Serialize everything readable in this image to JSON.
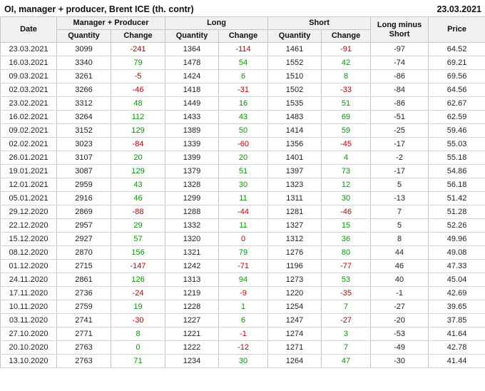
{
  "header": {
    "title": "OI, manager + producer, Brent ICE (th. contr)",
    "date": "23.03.2021"
  },
  "columns": {
    "date": "Date",
    "group_mp": "Manager + Producer",
    "group_long": "Long",
    "group_short": "Short",
    "quantity": "Quantity",
    "change": "Change",
    "long_minus_short": "Long minus Short",
    "price": "Price"
  },
  "colors": {
    "positive": "#089908",
    "negative": "#cc0000",
    "header_bg": "#f0f0f0",
    "header_border": "#c6c6c6",
    "body_border": "#d4d4d4",
    "text": "#1a1a1a"
  },
  "rows": [
    {
      "date": "23.03.2021",
      "mp_q": "3099",
      "mp_c": "-241",
      "mp_cc": "neg",
      "long_q": "1364",
      "long_c": "-114",
      "long_cc": "neg",
      "short_q": "1461",
      "short_c": "-91",
      "short_cc": "neg",
      "ls": "-97",
      "price": "64.52"
    },
    {
      "date": "16.03.2021",
      "mp_q": "3340",
      "mp_c": "79",
      "mp_cc": "pos",
      "long_q": "1478",
      "long_c": "54",
      "long_cc": "pos",
      "short_q": "1552",
      "short_c": "42",
      "short_cc": "pos",
      "ls": "-74",
      "price": "69.21"
    },
    {
      "date": "09.03.2021",
      "mp_q": "3261",
      "mp_c": "-5",
      "mp_cc": "neg",
      "long_q": "1424",
      "long_c": "6",
      "long_cc": "pos",
      "short_q": "1510",
      "short_c": "8",
      "short_cc": "pos",
      "ls": "-86",
      "price": "69.56"
    },
    {
      "date": "02.03.2021",
      "mp_q": "3266",
      "mp_c": "-46",
      "mp_cc": "neg",
      "long_q": "1418",
      "long_c": "-31",
      "long_cc": "neg",
      "short_q": "1502",
      "short_c": "-33",
      "short_cc": "neg",
      "ls": "-84",
      "price": "64.56"
    },
    {
      "date": "23.02.2021",
      "mp_q": "3312",
      "mp_c": "48",
      "mp_cc": "pos",
      "long_q": "1449",
      "long_c": "16",
      "long_cc": "pos",
      "short_q": "1535",
      "short_c": "51",
      "short_cc": "pos",
      "ls": "-86",
      "price": "62.67"
    },
    {
      "date": "16.02.2021",
      "mp_q": "3264",
      "mp_c": "112",
      "mp_cc": "pos",
      "long_q": "1433",
      "long_c": "43",
      "long_cc": "pos",
      "short_q": "1483",
      "short_c": "69",
      "short_cc": "pos",
      "ls": "-51",
      "price": "62.59"
    },
    {
      "date": "09.02.2021",
      "mp_q": "3152",
      "mp_c": "129",
      "mp_cc": "pos",
      "long_q": "1389",
      "long_c": "50",
      "long_cc": "pos",
      "short_q": "1414",
      "short_c": "59",
      "short_cc": "pos",
      "ls": "-25",
      "price": "59.46"
    },
    {
      "date": "02.02.2021",
      "mp_q": "3023",
      "mp_c": "-84",
      "mp_cc": "neg",
      "long_q": "1339",
      "long_c": "-60",
      "long_cc": "neg",
      "short_q": "1356",
      "short_c": "-45",
      "short_cc": "neg",
      "ls": "-17",
      "price": "55.03"
    },
    {
      "date": "26.01.2021",
      "mp_q": "3107",
      "mp_c": "20",
      "mp_cc": "pos",
      "long_q": "1399",
      "long_c": "20",
      "long_cc": "pos",
      "short_q": "1401",
      "short_c": "4",
      "short_cc": "pos",
      "ls": "-2",
      "price": "55.18"
    },
    {
      "date": "19.01.2021",
      "mp_q": "3087",
      "mp_c": "129",
      "mp_cc": "pos",
      "long_q": "1379",
      "long_c": "51",
      "long_cc": "pos",
      "short_q": "1397",
      "short_c": "73",
      "short_cc": "pos",
      "ls": "-17",
      "price": "54.86"
    },
    {
      "date": "12.01.2021",
      "mp_q": "2959",
      "mp_c": "43",
      "mp_cc": "pos",
      "long_q": "1328",
      "long_c": "30",
      "long_cc": "pos",
      "short_q": "1323",
      "short_c": "12",
      "short_cc": "pos",
      "ls": "5",
      "price": "56.18"
    },
    {
      "date": "05.01.2021",
      "mp_q": "2916",
      "mp_c": "46",
      "mp_cc": "pos",
      "long_q": "1299",
      "long_c": "11",
      "long_cc": "pos",
      "short_q": "1311",
      "short_c": "30",
      "short_cc": "pos",
      "ls": "-13",
      "price": "51.42"
    },
    {
      "date": "29.12.2020",
      "mp_q": "2869",
      "mp_c": "-88",
      "mp_cc": "neg",
      "long_q": "1288",
      "long_c": "-44",
      "long_cc": "neg",
      "short_q": "1281",
      "short_c": "-46",
      "short_cc": "neg",
      "ls": "7",
      "price": "51.28"
    },
    {
      "date": "22.12.2020",
      "mp_q": "2957",
      "mp_c": "29",
      "mp_cc": "pos",
      "long_q": "1332",
      "long_c": "11",
      "long_cc": "pos",
      "short_q": "1327",
      "short_c": "15",
      "short_cc": "pos",
      "ls": "5",
      "price": "52.26"
    },
    {
      "date": "15.12.2020",
      "mp_q": "2927",
      "mp_c": "57",
      "mp_cc": "pos",
      "long_q": "1320",
      "long_c": "0",
      "long_cc": "neg",
      "short_q": "1312",
      "short_c": "36",
      "short_cc": "pos",
      "ls": "8",
      "price": "49.96"
    },
    {
      "date": "08.12.2020",
      "mp_q": "2870",
      "mp_c": "156",
      "mp_cc": "pos",
      "long_q": "1321",
      "long_c": "79",
      "long_cc": "pos",
      "short_q": "1276",
      "short_c": "80",
      "short_cc": "pos",
      "ls": "44",
      "price": "49.08"
    },
    {
      "date": "01.12.2020",
      "mp_q": "2715",
      "mp_c": "-147",
      "mp_cc": "neg",
      "long_q": "1242",
      "long_c": "-71",
      "long_cc": "neg",
      "short_q": "1196",
      "short_c": "-77",
      "short_cc": "neg",
      "ls": "46",
      "price": "47.33"
    },
    {
      "date": "24.11.2020",
      "mp_q": "2861",
      "mp_c": "126",
      "mp_cc": "pos",
      "long_q": "1313",
      "long_c": "94",
      "long_cc": "pos",
      "short_q": "1273",
      "short_c": "53",
      "short_cc": "pos",
      "ls": "40",
      "price": "45.04"
    },
    {
      "date": "17.11.2020",
      "mp_q": "2736",
      "mp_c": "-24",
      "mp_cc": "neg",
      "long_q": "1219",
      "long_c": "-9",
      "long_cc": "neg",
      "short_q": "1220",
      "short_c": "-35",
      "short_cc": "neg",
      "ls": "-1",
      "price": "42.69"
    },
    {
      "date": "10.11.2020",
      "mp_q": "2759",
      "mp_c": "19",
      "mp_cc": "pos",
      "long_q": "1228",
      "long_c": "1",
      "long_cc": "pos",
      "short_q": "1254",
      "short_c": "7",
      "short_cc": "pos",
      "ls": "-27",
      "price": "39.65"
    },
    {
      "date": "03.11.2020",
      "mp_q": "2741",
      "mp_c": "-30",
      "mp_cc": "neg",
      "long_q": "1227",
      "long_c": "6",
      "long_cc": "pos",
      "short_q": "1247",
      "short_c": "-27",
      "short_cc": "neg",
      "ls": "-20",
      "price": "37.85"
    },
    {
      "date": "27.10.2020",
      "mp_q": "2771",
      "mp_c": "8",
      "mp_cc": "pos",
      "long_q": "1221",
      "long_c": "-1",
      "long_cc": "neg",
      "short_q": "1274",
      "short_c": "3",
      "short_cc": "pos",
      "ls": "-53",
      "price": "41.64"
    },
    {
      "date": "20.10.2020",
      "mp_q": "2763",
      "mp_c": "0",
      "mp_cc": "pos",
      "long_q": "1222",
      "long_c": "-12",
      "long_cc": "neg",
      "short_q": "1271",
      "short_c": "7",
      "short_cc": "pos",
      "ls": "-49",
      "price": "42.78"
    },
    {
      "date": "13.10.2020",
      "mp_q": "2763",
      "mp_c": "71",
      "mp_cc": "pos",
      "long_q": "1234",
      "long_c": "30",
      "long_cc": "pos",
      "short_q": "1264",
      "short_c": "47",
      "short_cc": "pos",
      "ls": "-30",
      "price": "41.44"
    }
  ]
}
